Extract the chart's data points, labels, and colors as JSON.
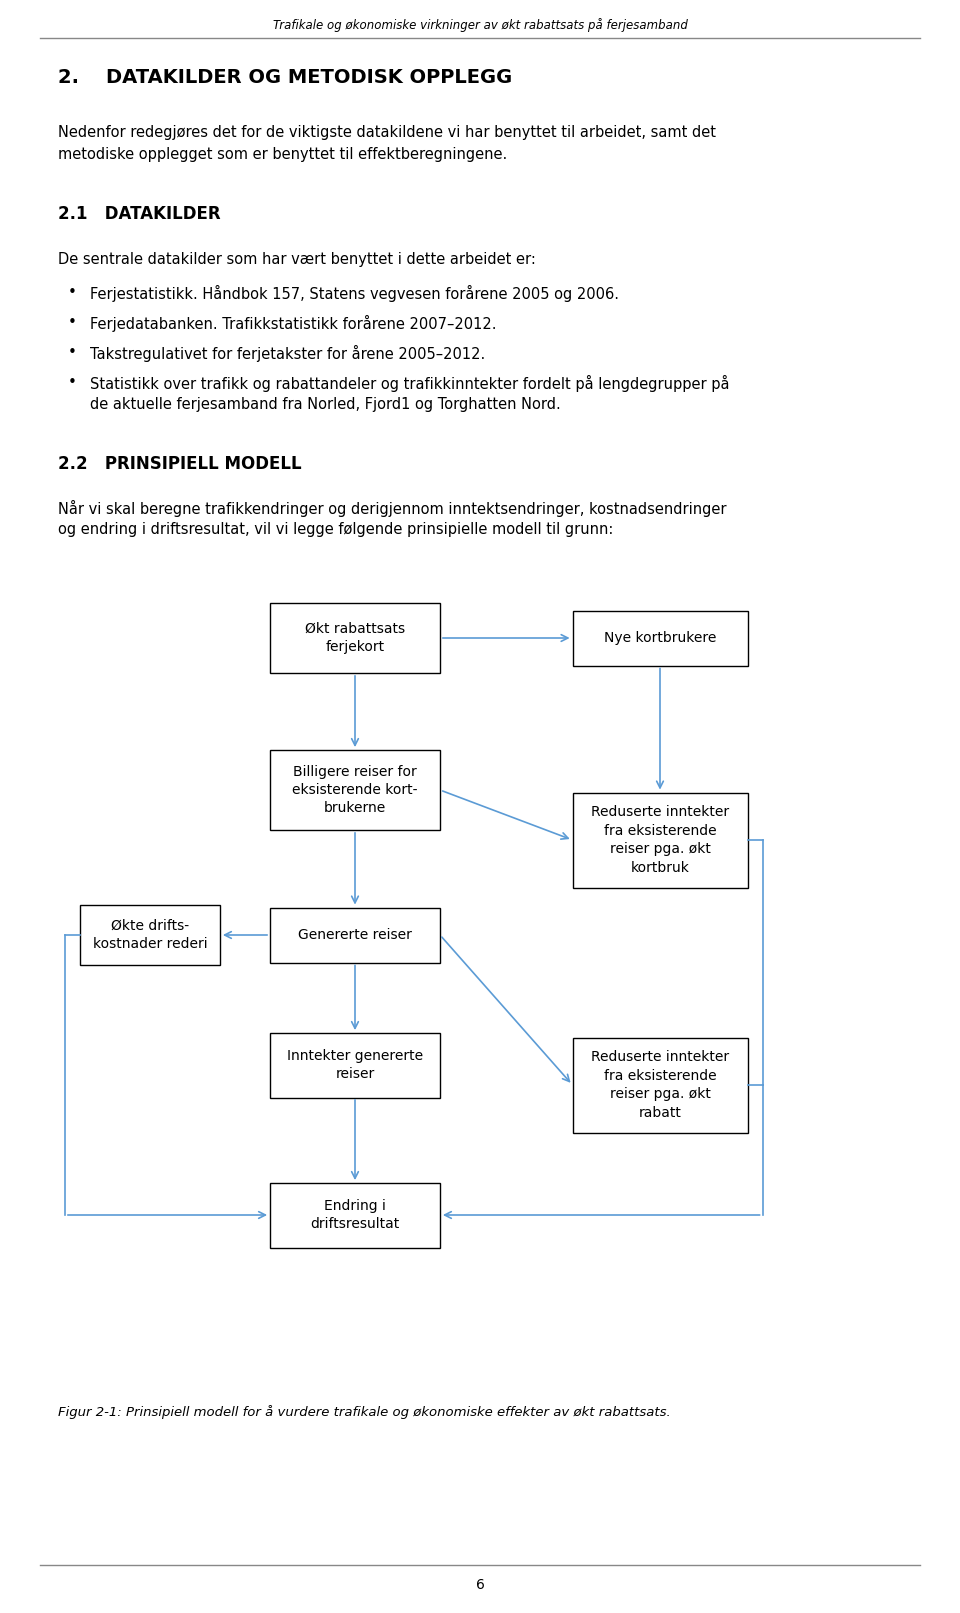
{
  "header_italic": "Trafikale og økonomiske virkninger av økt rabattsats på ferjesamband",
  "section_title": "2.    DATAKILDER OG METODISK OPPLEGG",
  "section_body_1": "Nedenfor redegjøres det for de viktigste datakildene vi har benyttet til arbeidet, samt det",
  "section_body_2": "metodiske opplegget som er benyttet til effektberegningene.",
  "subsection_title": "2.1   DATAKILDER",
  "subsection_body": "De sentrale datakilder som har vært benyttet i dette arbeidet er:",
  "bullets": [
    "Ferjestatistikk. Håndbok 157, Statens vegvesen forårene 2005 og 2006.",
    "Ferjedatabanken. Trafikkstatistikk forårene 2007–2012.",
    "Takstregulativet for ferjetakster for årene 2005–2012.",
    "Statistikk over trafikk og rabattandeler og trafikkinntekter fordelt på lengdegrupper på",
    "de aktuelle ferjesamband fra Norled, Fjord1 og Torghatten Nord."
  ],
  "section2_title": "2.2   PRINSIPIELL MODELL",
  "section2_body_1": "Når vi skal beregne trafikkendringer og derigjennom inntektsendringer, kostnadsendringer",
  "section2_body_2": "og endring i driftsresultat, vil vi legge følgende prinsipielle modell til grunn:",
  "figure_caption": "Figur 2-1: Prinsipiell modell for å vurdere trafikale og økonomiske effekter av økt rabattsats.",
  "footer_page": "6",
  "bg_color": "#ffffff",
  "text_color": "#000000",
  "arrow_color": "#5b9bd5",
  "box_edge_color": "#000000"
}
